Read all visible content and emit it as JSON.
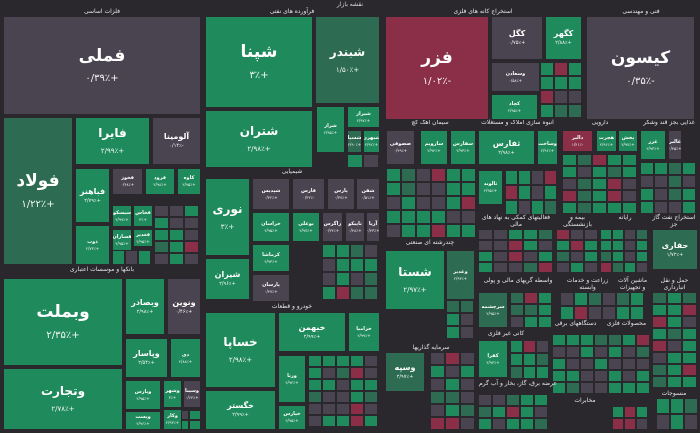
{
  "header": {
    "title": "نقشه بازار"
  },
  "colors": {
    "up": "#1f8a5b",
    "up_dim": "#2d6b52",
    "flat": "#4a4451",
    "down": "#8b2f49",
    "background": "#2a282c"
  },
  "sectors": [
    {
      "name": "فلزات اساسی",
      "tiles": [
        {
          "symbol": "فملی",
          "change": "+۰/۳۹٪",
          "status": "flat"
        },
        {
          "symbol": "فولاد",
          "change": "+۱/۲۲٪",
          "status": "up_dim"
        },
        {
          "symbol": "فایرا",
          "change": "+۲/۹۹٪",
          "status": "up"
        },
        {
          "symbol": "آلومینا",
          "change": "-۰/۱۴٪",
          "status": "flat"
        },
        {
          "symbol": "فباهنر",
          "change": "+۲/۷۹٪",
          "status": "up"
        },
        {
          "symbol": "فخوز",
          "change": "+۰/۴۸٪",
          "status": "flat"
        },
        {
          "symbol": "فرود",
          "change": "+۲/۹۸٪",
          "status": "up"
        },
        {
          "symbol": "کاوه",
          "change": "+۲/۹۵٪",
          "status": "up"
        },
        {
          "symbol": "ذوب",
          "change": "+۲/۷۳٪",
          "status": "up"
        },
        {
          "symbol": "سیسکو",
          "change": "+۲/۹۹٪",
          "status": "up"
        },
        {
          "symbol": "فخاس",
          "change": "+۳٪",
          "status": "up"
        },
        {
          "symbol": "فسازان",
          "change": "+۲/۹۵٪",
          "status": "up"
        },
        {
          "symbol": "فغدیر",
          "change": "+۲/۹۵٪",
          "status": "up"
        }
      ]
    },
    {
      "name": "بانکها و موسسات اعتباری",
      "tiles": [
        {
          "symbol": "وبملت",
          "change": "+۲/۳۵٪",
          "status": "up"
        },
        {
          "symbol": "وتجارت",
          "change": "+۲/۷۸٪",
          "status": "up"
        },
        {
          "symbol": "وبصادر",
          "change": "+۲/۹۸٪",
          "status": "up"
        },
        {
          "symbol": "ونوین",
          "change": "+۰/۴۶٪",
          "status": "flat"
        },
        {
          "symbol": "وپاسار",
          "change": "+۲/۵۴٪",
          "status": "up"
        },
        {
          "symbol": "دی",
          "change": "+۲/۸۸٪",
          "status": "up"
        },
        {
          "symbol": "وپارس",
          "change": "+۲/۹۵٪",
          "status": "up"
        },
        {
          "symbol": "وشهر",
          "change": "+۳٪",
          "status": "up"
        },
        {
          "symbol": "وسینا",
          "change": "+۰/۶۴٪",
          "status": "flat"
        },
        {
          "symbol": "وپست",
          "change": "+۲/۹۶٪",
          "status": "up"
        },
        {
          "symbol": "وکار",
          "change": "+۲/۹۳٪",
          "status": "up"
        }
      ]
    },
    {
      "name": "فرآورده های نفتی",
      "tiles": [
        {
          "symbol": "شپنا",
          "change": "+۳٪",
          "status": "up"
        },
        {
          "symbol": "شبندر",
          "change": "+۱/۵۰٪",
          "status": "up_dim"
        },
        {
          "symbol": "شتران",
          "change": "+۲/۹۸٪",
          "status": "up"
        },
        {
          "symbol": "شراز",
          "change": "+۲/۹۵٪",
          "status": "up"
        },
        {
          "symbol": "شیراز",
          "change": "+۲/۹۷٪",
          "status": "up"
        },
        {
          "symbol": "شسپا",
          "change": "+۲/۹۰٪",
          "status": "up_dim"
        },
        {
          "symbol": "شبهرن",
          "change": "+۲/۹۲٪",
          "status": "up"
        }
      ]
    },
    {
      "name": "شیمیایی",
      "tiles": [
        {
          "symbol": "نوری",
          "change": "+۳٪",
          "status": "up"
        },
        {
          "symbol": "شیران",
          "change": "+۲/۹۶٪",
          "status": "up"
        },
        {
          "symbol": "شپدیس",
          "change": "+۰/۴۲٪",
          "status": "flat"
        },
        {
          "symbol": "فارس",
          "change": "-۰/۳۲٪",
          "status": "flat"
        },
        {
          "symbol": "پارس",
          "change": "+۰/۳۷٪",
          "status": "flat"
        },
        {
          "symbol": "شفن",
          "change": "+۰/۵۱٪",
          "status": "flat"
        },
        {
          "symbol": "خراسان",
          "change": "+۲/۹۵٪",
          "status": "up"
        },
        {
          "symbol": "بوعلی",
          "change": "+۲/۹۷٪",
          "status": "up"
        },
        {
          "symbol": "زاگرس",
          "change": "+۰/۳۴٪",
          "status": "flat"
        },
        {
          "symbol": "تاپیکو",
          "change": "+۰/۴۸٪",
          "status": "flat"
        },
        {
          "symbol": "آریا",
          "change": "+۰/۴۳٪",
          "status": "flat"
        },
        {
          "symbol": "کرماشا",
          "change": "+۲/۹۳٪",
          "status": "up"
        },
        {
          "symbol": "پارسان",
          "change": "+۰/۴۷٪",
          "status": "flat"
        }
      ]
    },
    {
      "name": "خودرو و قطعات",
      "tiles": [
        {
          "symbol": "خساپا",
          "change": "+۲/۹۸٪",
          "status": "up"
        },
        {
          "symbol": "خگستر",
          "change": "+۲/۹۹٪",
          "status": "up"
        },
        {
          "symbol": "خبهمن",
          "change": "+۲/۹۹٪",
          "status": "up"
        },
        {
          "symbol": "خزامیا",
          "change": "+۲/۹۹٪",
          "status": "up"
        },
        {
          "symbol": "ورنا",
          "change": "+۲/۹۴٪",
          "status": "up"
        },
        {
          "symbol": "خپارس",
          "change": "+۲/۹۵٪",
          "status": "up"
        }
      ]
    },
    {
      "name": "استخراج کانه های فلزی",
      "tiles": [
        {
          "symbol": "فزر",
          "change": "-۱/۰۲٪",
          "status": "down"
        },
        {
          "symbol": "کگل",
          "change": "+۰/۷۵٪",
          "status": "flat"
        },
        {
          "symbol": "کگهر",
          "change": "+۲/۸۸٪",
          "status": "up"
        },
        {
          "symbol": "وسعادن",
          "change": "+۰/۵۸٪",
          "status": "flat"
        },
        {
          "symbol": "کچاد",
          "change": "+۲/۹۵٪",
          "status": "up"
        }
      ]
    },
    {
      "name": "فنی و مهندسی",
      "tiles": [
        {
          "symbol": "کیسون",
          "change": "-۰/۳۵٪",
          "status": "flat"
        }
      ]
    },
    {
      "name": "سیمان آهک گچ",
      "tiles": [
        {
          "symbol": "صصوفی",
          "change": "+۰/۴۹٪",
          "status": "flat"
        },
        {
          "symbol": "سارویم",
          "change": "+۲/۹۴٪",
          "status": "up"
        },
        {
          "symbol": "سفارس",
          "change": "+۲/۹۳٪",
          "status": "up"
        }
      ]
    },
    {
      "name": "انبوه سازی املاک و مستغلات",
      "tiles": [
        {
          "symbol": "ثفارس",
          "change": "+۲/۹۸٪",
          "status": "up"
        },
        {
          "symbol": "وساخت",
          "change": "+۲/۹۶٪",
          "status": "up"
        },
        {
          "symbol": "ثالوند",
          "change": "+۲/۹۵٪",
          "status": "up"
        }
      ]
    },
    {
      "name": "دارویی",
      "tiles": [
        {
          "symbol": "دالبر",
          "change": "-۱/۲۱٪",
          "status": "down"
        },
        {
          "symbol": "هجرت",
          "change": "+۲/۹۶٪",
          "status": "up"
        },
        {
          "symbol": "پخش",
          "change": "+۲/۹۷٪",
          "status": "up"
        }
      ]
    },
    {
      "name": "غذایی بجز قند وشکر",
      "tiles": [
        {
          "symbol": "غزر",
          "change": "+۲/۹۳٪",
          "status": "up"
        },
        {
          "symbol": "غالبر",
          "change": "+۰/۴۵٪",
          "status": "flat"
        }
      ]
    },
    {
      "name": "چندرشته ای صنعتی",
      "tiles": [
        {
          "symbol": "شستا",
          "change": "+۲/۹۷٪",
          "status": "up"
        },
        {
          "symbol": "وغدیر",
          "change": "+۲/۹۳٪",
          "status": "up_dim"
        }
      ]
    },
    {
      "name": "استخراج نفت گاز جز",
      "tiles": [
        {
          "symbol": "حفاری",
          "change": "+۱/۷۲٪",
          "status": "up_dim"
        }
      ]
    },
    {
      "name": "فعالیتهای کمکی به نهاد های مالی",
      "tiles": []
    },
    {
      "name": "بیمه و بازنشستگی",
      "tiles": []
    },
    {
      "name": "رایانه",
      "tiles": []
    },
    {
      "name": "واسطه گریهای مالی و پولی",
      "tiles": [
        {
          "symbol": "سرچشمه",
          "change": "+۲/۹۵٪",
          "status": "up_dim"
        }
      ]
    },
    {
      "name": "زراعت و خدمات وابسته",
      "tiles": []
    },
    {
      "name": "ماشین آلات و تجهیزات",
      "tiles": []
    },
    {
      "name": "حمل و نقل انبارداری",
      "tiles": []
    },
    {
      "name": "کانی غیر فلزی",
      "tiles": [
        {
          "symbol": "کفرا",
          "change": "+۲/۹۳٪",
          "status": "up"
        }
      ]
    },
    {
      "name": "سرمایه گذاریها",
      "tiles": [
        {
          "symbol": "وسپه",
          "change": "+۲/۹۷٪",
          "status": "up_dim"
        }
      ]
    },
    {
      "name": "عرضه برق، گاز، بخار و آب گرم",
      "tiles": []
    },
    {
      "name": "دستگاههای برقی",
      "tiles": []
    },
    {
      "name": "محصولات فلزی",
      "tiles": []
    },
    {
      "name": "منسوجات",
      "tiles": []
    },
    {
      "name": "مخابرات",
      "tiles": []
    }
  ]
}
